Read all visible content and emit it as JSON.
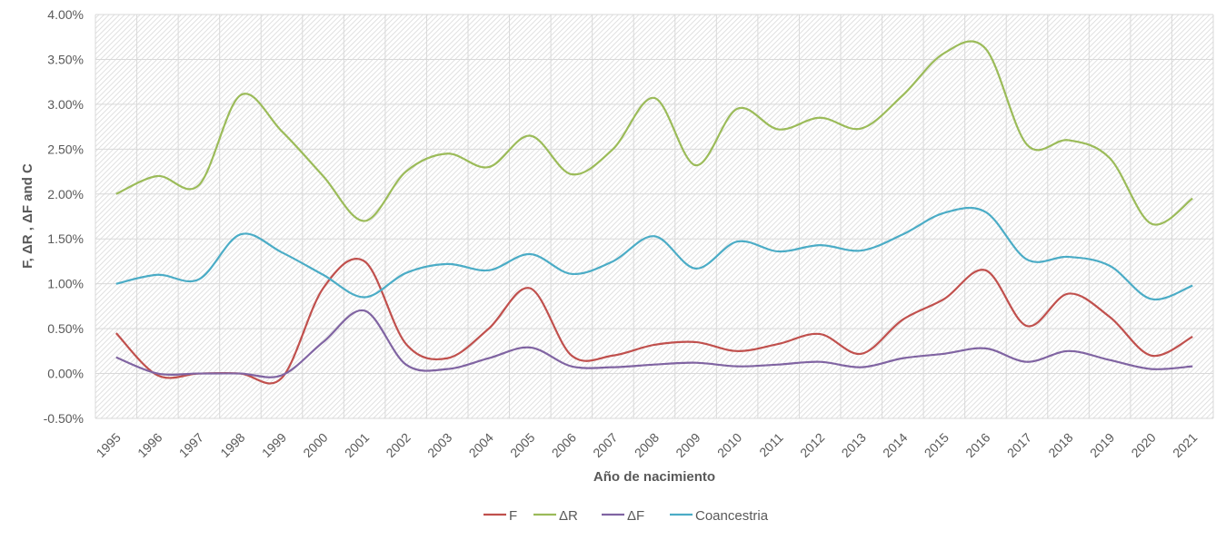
{
  "chart_data": {
    "type": "line",
    "title": "",
    "xlabel": "Año de nacimiento",
    "ylabel": "F, ΔR , ΔF and C",
    "ylim": [
      -0.5,
      4.0
    ],
    "ytick_step": 0.5,
    "y_unit": "%",
    "grid": true,
    "legend_position": "bottom",
    "categories": [
      "1995",
      "1996",
      "1997",
      "1998",
      "1999",
      "2000",
      "2001",
      "2002",
      "2003",
      "2004",
      "2005",
      "2006",
      "2007",
      "2008",
      "2009",
      "2010",
      "2011",
      "2012",
      "2013",
      "2014",
      "2015",
      "2016",
      "2017",
      "2018",
      "2019",
      "2020",
      "2021"
    ],
    "series": [
      {
        "name": "F",
        "color": "#c0504d",
        "values": [
          0.45,
          -0.02,
          0.0,
          0.0,
          -0.05,
          0.95,
          1.25,
          0.33,
          0.17,
          0.5,
          0.95,
          0.2,
          0.2,
          0.32,
          0.35,
          0.25,
          0.33,
          0.44,
          0.22,
          0.6,
          0.83,
          1.15,
          0.53,
          0.89,
          0.63,
          0.2,
          0.41
        ]
      },
      {
        "name": "ΔR",
        "color": "#9bbb59",
        "values": [
          2.0,
          2.2,
          2.1,
          3.1,
          2.7,
          2.2,
          1.7,
          2.25,
          2.45,
          2.3,
          2.65,
          2.22,
          2.5,
          3.07,
          2.32,
          2.95,
          2.72,
          2.85,
          2.73,
          3.1,
          3.57,
          3.62,
          2.55,
          2.6,
          2.4,
          1.67,
          1.95
        ]
      },
      {
        "name": "ΔF",
        "color": "#8064a2",
        "values": [
          0.18,
          0.0,
          0.0,
          0.0,
          -0.02,
          0.35,
          0.7,
          0.1,
          0.05,
          0.17,
          0.29,
          0.08,
          0.07,
          0.1,
          0.12,
          0.08,
          0.1,
          0.13,
          0.07,
          0.17,
          0.22,
          0.28,
          0.13,
          0.25,
          0.15,
          0.05,
          0.08
        ]
      },
      {
        "name": "Coancestria",
        "color": "#4bacc6",
        "values": [
          1.0,
          1.1,
          1.05,
          1.55,
          1.35,
          1.1,
          0.85,
          1.12,
          1.22,
          1.15,
          1.33,
          1.11,
          1.25,
          1.53,
          1.17,
          1.47,
          1.36,
          1.43,
          1.37,
          1.55,
          1.79,
          1.8,
          1.27,
          1.3,
          1.2,
          0.83,
          0.98
        ]
      }
    ]
  }
}
